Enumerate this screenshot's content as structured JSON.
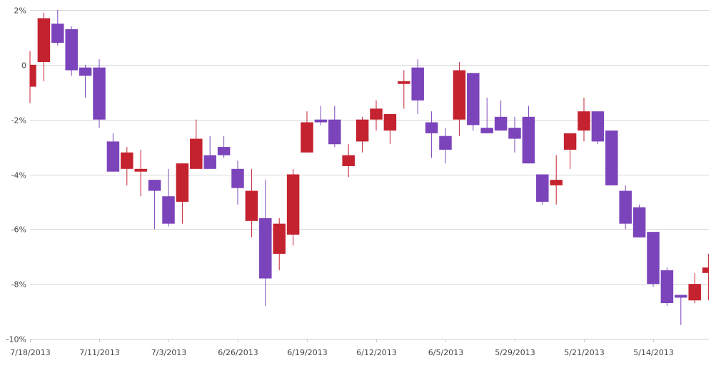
{
  "chart_data": {
    "type": "candlestick",
    "ylim": [
      -10,
      2
    ],
    "y_ticks": [
      2,
      0,
      -2,
      -4,
      -6,
      -8,
      -10
    ],
    "y_tick_labels": [
      "2%",
      "0",
      "-2%",
      "-4%",
      "-6%",
      "-8%",
      "-10%"
    ],
    "x_tick_labels": [
      "7/18/2013",
      "7/11/2013",
      "7/3/2013",
      "6/26/2013",
      "6/19/2013",
      "6/12/2013",
      "6/5/2013",
      "5/29/2013",
      "5/21/2013",
      "5/14/2013"
    ],
    "grid": true,
    "colors": {
      "up": "#7b44bb",
      "down": "#c5222f",
      "grid": "#d9d9d9",
      "text": "#444444"
    },
    "candles": [
      {
        "open": -0.8,
        "close": 0.0,
        "high": 0.5,
        "low": -1.4,
        "dir": "down"
      },
      {
        "open": 0.1,
        "close": 1.7,
        "high": 1.9,
        "low": -0.6,
        "dir": "down"
      },
      {
        "open": 0.8,
        "close": 1.5,
        "high": 2.0,
        "low": 0.7,
        "dir": "up"
      },
      {
        "open": -0.2,
        "close": 1.3,
        "high": 1.4,
        "low": -0.4,
        "dir": "up"
      },
      {
        "open": -0.4,
        "close": -0.1,
        "high": 0.0,
        "low": -1.2,
        "dir": "up"
      },
      {
        "open": -2.0,
        "close": -0.1,
        "high": 0.2,
        "low": -2.3,
        "dir": "up"
      },
      {
        "open": -3.9,
        "close": -2.8,
        "high": -2.5,
        "low": -3.9,
        "dir": "up"
      },
      {
        "open": -3.8,
        "close": -3.2,
        "high": -3.0,
        "low": -4.4,
        "dir": "down"
      },
      {
        "open": -3.9,
        "close": -3.8,
        "high": -3.1,
        "low": -4.8,
        "dir": "down"
      },
      {
        "open": -4.6,
        "close": -4.2,
        "high": -4.2,
        "low": -6.0,
        "dir": "up"
      },
      {
        "open": -5.8,
        "close": -4.8,
        "high": -3.8,
        "low": -5.9,
        "dir": "up"
      },
      {
        "open": -5.0,
        "close": -3.6,
        "high": -3.6,
        "low": -5.8,
        "dir": "down"
      },
      {
        "open": -3.8,
        "close": -2.7,
        "high": -2.0,
        "low": -3.8,
        "dir": "down"
      },
      {
        "open": -3.8,
        "close": -3.3,
        "high": -2.6,
        "low": -3.8,
        "dir": "up"
      },
      {
        "open": -3.3,
        "close": -3.0,
        "high": -2.6,
        "low": -3.4,
        "dir": "up"
      },
      {
        "open": -4.5,
        "close": -3.8,
        "high": -3.5,
        "low": -5.1,
        "dir": "up"
      },
      {
        "open": -5.7,
        "close": -4.6,
        "high": -3.8,
        "low": -6.3,
        "dir": "down"
      },
      {
        "open": -7.8,
        "close": -5.6,
        "high": -4.2,
        "low": -8.8,
        "dir": "up"
      },
      {
        "open": -6.9,
        "close": -5.8,
        "high": -5.6,
        "low": -7.5,
        "dir": "down"
      },
      {
        "open": -6.2,
        "close": -4.0,
        "high": -3.8,
        "low": -6.6,
        "dir": "down"
      },
      {
        "open": -3.2,
        "close": -2.1,
        "high": -1.7,
        "low": -3.2,
        "dir": "down"
      },
      {
        "open": -2.1,
        "close": -2.0,
        "high": -1.5,
        "low": -2.2,
        "dir": "up"
      },
      {
        "open": -2.9,
        "close": -2.0,
        "high": -1.5,
        "low": -3.0,
        "dir": "up"
      },
      {
        "open": -3.7,
        "close": -3.3,
        "high": -2.9,
        "low": -4.1,
        "dir": "down"
      },
      {
        "open": -2.8,
        "close": -2.0,
        "high": -1.9,
        "low": -3.2,
        "dir": "down"
      },
      {
        "open": -2.0,
        "close": -1.6,
        "high": -1.3,
        "low": -2.4,
        "dir": "down"
      },
      {
        "open": -2.4,
        "close": -1.8,
        "high": -1.8,
        "low": -2.9,
        "dir": "down"
      },
      {
        "open": -0.7,
        "close": -0.6,
        "high": -0.2,
        "low": -1.6,
        "dir": "down"
      },
      {
        "open": -1.3,
        "close": -0.1,
        "high": 0.2,
        "low": -1.8,
        "dir": "up"
      },
      {
        "open": -2.5,
        "close": -2.1,
        "high": -1.7,
        "low": -3.4,
        "dir": "up"
      },
      {
        "open": -3.1,
        "close": -2.6,
        "high": -2.3,
        "low": -3.6,
        "dir": "up"
      },
      {
        "open": -2.0,
        "close": -0.2,
        "high": 0.1,
        "low": -2.6,
        "dir": "down"
      },
      {
        "open": -2.2,
        "close": -0.3,
        "high": -0.3,
        "low": -2.4,
        "dir": "up"
      },
      {
        "open": -2.5,
        "close": -2.3,
        "high": -1.2,
        "low": -2.5,
        "dir": "up"
      },
      {
        "open": -2.4,
        "close": -1.9,
        "high": -1.3,
        "low": -2.4,
        "dir": "up"
      },
      {
        "open": -2.7,
        "close": -2.3,
        "high": -1.9,
        "low": -3.2,
        "dir": "up"
      },
      {
        "open": -3.6,
        "close": -1.9,
        "high": -1.5,
        "low": -3.6,
        "dir": "up"
      },
      {
        "open": -5.0,
        "close": -4.0,
        "high": -4.0,
        "low": -5.1,
        "dir": "up"
      },
      {
        "open": -4.4,
        "close": -4.2,
        "high": -3.3,
        "low": -5.1,
        "dir": "down"
      },
      {
        "open": -3.1,
        "close": -2.5,
        "high": -2.5,
        "low": -3.8,
        "dir": "down"
      },
      {
        "open": -2.4,
        "close": -1.7,
        "high": -1.2,
        "low": -2.8,
        "dir": "down"
      },
      {
        "open": -2.8,
        "close": -1.7,
        "high": -1.7,
        "low": -2.9,
        "dir": "up"
      },
      {
        "open": -4.4,
        "close": -2.4,
        "high": -2.4,
        "low": -4.4,
        "dir": "up"
      },
      {
        "open": -5.8,
        "close": -4.6,
        "high": -4.4,
        "low": -6.0,
        "dir": "up"
      },
      {
        "open": -6.3,
        "close": -5.2,
        "high": -5.1,
        "low": -6.3,
        "dir": "up"
      },
      {
        "open": -8.0,
        "close": -6.1,
        "high": -6.1,
        "low": -8.1,
        "dir": "up"
      },
      {
        "open": -8.7,
        "close": -7.5,
        "high": -7.4,
        "low": -8.8,
        "dir": "up"
      },
      {
        "open": -8.5,
        "close": -8.4,
        "high": -8.4,
        "low": -9.5,
        "dir": "up"
      },
      {
        "open": -8.6,
        "close": -8.0,
        "high": -7.6,
        "low": -8.7,
        "dir": "down"
      },
      {
        "open": -7.6,
        "close": -7.4,
        "high": -6.9,
        "low": -8.6,
        "dir": "down"
      }
    ]
  }
}
